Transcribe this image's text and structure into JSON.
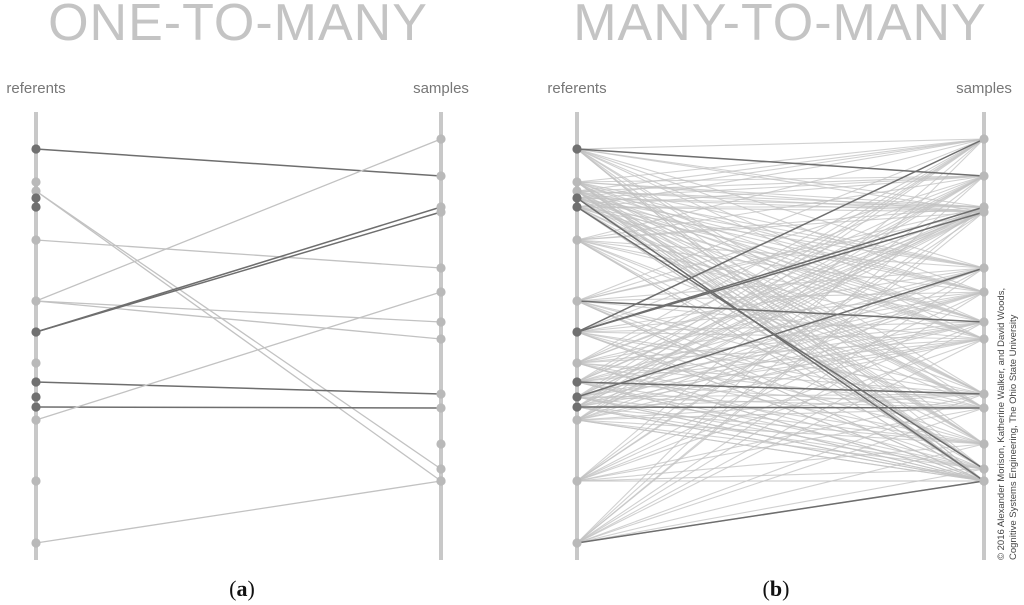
{
  "panels": [
    {
      "id": "a",
      "title": "ONE-TO-MANY",
      "left_label": "referents",
      "right_label": "samples",
      "caption_open": "(",
      "caption_letter": "a",
      "caption_close": ")"
    },
    {
      "id": "b",
      "title": "MANY-TO-MANY",
      "left_label": "referents",
      "right_label": "samples",
      "caption_open": "(",
      "caption_letter": "b",
      "caption_close": ")"
    }
  ],
  "credit_line1": "© 2016 Alexander Morison, Katherine Walker, and David Woods,",
  "credit_line2": "Cognitive Systems Engineering, The Ohio State University",
  "colors": {
    "axis": "#c8c8c8",
    "light_dot": "#b9b9b9",
    "dark_dot": "#707070",
    "light_link": "#c2c2c2",
    "dark_link": "#6e6e6e"
  },
  "referent_dots": [
    {
      "tone": "dark"
    },
    {
      "tone": "light"
    },
    {
      "tone": "light"
    },
    {
      "tone": "dark"
    },
    {
      "tone": "dark"
    },
    {
      "tone": "light"
    },
    {
      "tone": "light"
    },
    {
      "tone": "dark"
    },
    {
      "tone": "light"
    },
    {
      "tone": "dark"
    },
    {
      "tone": "dark"
    },
    {
      "tone": "dark"
    },
    {
      "tone": "light"
    },
    {
      "tone": "light"
    },
    {
      "tone": "light"
    }
  ],
  "sample_dots": [
    {
      "tone": "light"
    },
    {
      "tone": "light"
    },
    {
      "tone": "light"
    },
    {
      "tone": "light"
    },
    {
      "tone": "light"
    },
    {
      "tone": "light"
    },
    {
      "tone": "light"
    },
    {
      "tone": "light"
    },
    {
      "tone": "light"
    },
    {
      "tone": "light"
    },
    {
      "tone": "light"
    },
    {
      "tone": "light"
    },
    {
      "tone": "light"
    },
    {
      "tone": "light"
    }
  ],
  "one_to_many_links": [
    {
      "from": 0,
      "to": 1,
      "tone": "dark"
    },
    {
      "from": 2,
      "to": 12,
      "tone": "light"
    },
    {
      "from": 2,
      "to": 11,
      "tone": "light"
    },
    {
      "from": 5,
      "to": 4,
      "tone": "light"
    },
    {
      "from": 6,
      "to": 0,
      "tone": "light"
    },
    {
      "from": 6,
      "to": 6,
      "tone": "light"
    },
    {
      "from": 6,
      "to": 7,
      "tone": "light"
    },
    {
      "from": 7,
      "to": 2,
      "tone": "dark"
    },
    {
      "from": 7,
      "to": 3,
      "tone": "dark"
    },
    {
      "from": 9,
      "to": 8,
      "tone": "dark"
    },
    {
      "from": 11,
      "to": 9,
      "tone": "dark"
    },
    {
      "from": 12,
      "to": 5,
      "tone": "light"
    },
    {
      "from": 14,
      "to": 13,
      "tone": "light"
    }
  ],
  "many_to_many_dark_links": [
    {
      "from": 0,
      "to": 1
    },
    {
      "from": 3,
      "to": 12
    },
    {
      "from": 4,
      "to": 11
    },
    {
      "from": 7,
      "to": 2
    },
    {
      "from": 7,
      "to": 3
    },
    {
      "from": 7,
      "to": 0
    },
    {
      "from": 9,
      "to": 8
    },
    {
      "from": 11,
      "to": 9
    },
    {
      "from": 14,
      "to": 13
    },
    {
      "from": 6,
      "to": 6
    },
    {
      "from": 10,
      "to": 4
    }
  ]
}
